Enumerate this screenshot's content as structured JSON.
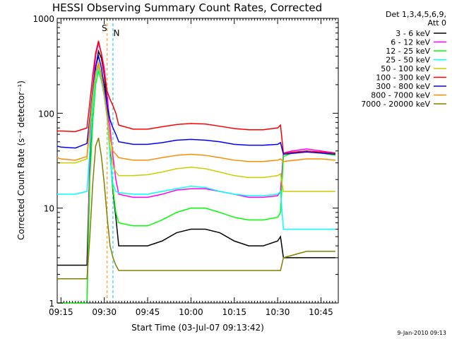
{
  "chart_data": {
    "type": "line",
    "title": "HESSI Observing Summary Count Rates, Corrected",
    "xlabel": "Start Time (03-Jul-07 09:13:42)",
    "ylabel": "Corrected Count Rate (s⁻¹ detector⁻¹)",
    "xlim": [
      "09:13:42",
      "10:51:00"
    ],
    "ylim": [
      1,
      1000
    ],
    "y_scale": "log",
    "x_ticks": [
      "09:15",
      "09:30",
      "09:45",
      "10:00",
      "10:15",
      "10:30",
      "10:45"
    ],
    "y_ticks": [
      {
        "value": 1,
        "label": "1"
      },
      {
        "value": 10,
        "label": "10"
      },
      {
        "value": 100,
        "label": "100"
      },
      {
        "value": 1000,
        "label": "1000"
      }
    ],
    "detector_header": [
      "Det 1,3,4,5,6,9,",
      "Att 0"
    ],
    "footer_timestamp": "9-Jan-2010 09:13",
    "legend_position": "outside-top-right",
    "markers": {
      "S": {
        "label": "S",
        "time": "09:31"
      },
      "N": {
        "label": "N",
        "time": "09:33"
      }
    },
    "series": [
      {
        "name": "3 - 6 keV",
        "color": "#000000",
        "points": [
          [
            "09:13:42",
            2.5
          ],
          [
            "09:15",
            2.5
          ],
          [
            "09:20",
            2.5
          ],
          [
            "09:24",
            2.5
          ],
          [
            "09:25",
            30
          ],
          [
            "09:26",
            120
          ],
          [
            "09:27",
            300
          ],
          [
            "09:28",
            450
          ],
          [
            "09:29",
            380
          ],
          [
            "09:30",
            250
          ],
          [
            "09:31",
            120
          ],
          [
            "09:32",
            40
          ],
          [
            "09:33",
            15
          ],
          [
            "09:34",
            8
          ],
          [
            "09:35",
            4
          ],
          [
            "09:40",
            4
          ],
          [
            "09:45",
            4
          ],
          [
            "09:50",
            4.5
          ],
          [
            "09:55",
            5.5
          ],
          [
            "10:00",
            6
          ],
          [
            "10:05",
            6
          ],
          [
            "10:10",
            5.5
          ],
          [
            "10:15",
            4.5
          ],
          [
            "10:20",
            4
          ],
          [
            "10:25",
            4
          ],
          [
            "10:30",
            4.5
          ],
          [
            "10:31",
            5
          ],
          [
            "10:32",
            3
          ],
          [
            "10:33",
            3
          ],
          [
            "10:40",
            3
          ],
          [
            "10:45",
            3
          ],
          [
            "10:50",
            3
          ]
        ]
      },
      {
        "name": "6 - 12 keV",
        "color": "#ff00ff",
        "points": [
          [
            "09:13:42",
            1
          ],
          [
            "09:24",
            1
          ],
          [
            "09:25",
            45
          ],
          [
            "09:26",
            170
          ],
          [
            "09:27",
            400
          ],
          [
            "09:28",
            550
          ],
          [
            "09:29",
            430
          ],
          [
            "09:30",
            300
          ],
          [
            "09:31",
            160
          ],
          [
            "09:32",
            70
          ],
          [
            "09:33",
            35
          ],
          [
            "09:34",
            20
          ],
          [
            "09:35",
            14
          ],
          [
            "09:40",
            13
          ],
          [
            "09:45",
            13
          ],
          [
            "09:50",
            14
          ],
          [
            "09:55",
            15.5
          ],
          [
            "10:00",
            16
          ],
          [
            "10:05",
            16
          ],
          [
            "10:10",
            15
          ],
          [
            "10:15",
            14
          ],
          [
            "10:20",
            13
          ],
          [
            "10:25",
            13
          ],
          [
            "10:30",
            13.5
          ],
          [
            "10:31",
            15
          ],
          [
            "10:32",
            38
          ],
          [
            "10:35",
            40
          ],
          [
            "10:40",
            42
          ],
          [
            "10:45",
            40
          ],
          [
            "10:50",
            38
          ]
        ]
      },
      {
        "name": "12 - 25 keV",
        "color": "#00ff00",
        "points": [
          [
            "09:13:42",
            1
          ],
          [
            "09:24",
            1
          ],
          [
            "09:25",
            20
          ],
          [
            "09:26",
            80
          ],
          [
            "09:27",
            200
          ],
          [
            "09:28",
            280
          ],
          [
            "09:29",
            220
          ],
          [
            "09:30",
            150
          ],
          [
            "09:31",
            90
          ],
          [
            "09:32",
            35
          ],
          [
            "09:33",
            16
          ],
          [
            "09:34",
            9
          ],
          [
            "09:35",
            7
          ],
          [
            "09:40",
            6.5
          ],
          [
            "09:45",
            6.5
          ],
          [
            "09:50",
            7.5
          ],
          [
            "09:55",
            9
          ],
          [
            "10:00",
            10
          ],
          [
            "10:05",
            10
          ],
          [
            "10:10",
            9
          ],
          [
            "10:15",
            8
          ],
          [
            "10:20",
            7.5
          ],
          [
            "10:25",
            7.5
          ],
          [
            "10:30",
            8
          ],
          [
            "10:31",
            9
          ],
          [
            "10:32",
            35
          ],
          [
            "10:35",
            38
          ],
          [
            "10:40",
            40
          ],
          [
            "10:45",
            38
          ],
          [
            "10:50",
            36
          ]
        ]
      },
      {
        "name": "25 - 50 keV",
        "color": "#00ffff",
        "points": [
          [
            "09:13:42",
            14
          ],
          [
            "09:15",
            14
          ],
          [
            "09:20",
            14
          ],
          [
            "09:24",
            15
          ],
          [
            "09:25",
            40
          ],
          [
            "09:26",
            120
          ],
          [
            "09:27",
            240
          ],
          [
            "09:28",
            300
          ],
          [
            "09:29",
            230
          ],
          [
            "09:30",
            150
          ],
          [
            "09:31",
            90
          ],
          [
            "09:32",
            35
          ],
          [
            "09:33",
            18
          ],
          [
            "09:34",
            15
          ],
          [
            "09:35",
            14.5
          ],
          [
            "09:40",
            14
          ],
          [
            "09:45",
            14
          ],
          [
            "09:50",
            15
          ],
          [
            "09:55",
            16
          ],
          [
            "10:00",
            17
          ],
          [
            "10:05",
            16.5
          ],
          [
            "10:10",
            15
          ],
          [
            "10:15",
            14
          ],
          [
            "10:20",
            13.5
          ],
          [
            "10:25",
            13.5
          ],
          [
            "10:30",
            14
          ],
          [
            "10:31",
            15
          ],
          [
            "10:32",
            6
          ],
          [
            "10:40",
            6
          ],
          [
            "10:45",
            6
          ],
          [
            "10:50",
            6
          ]
        ]
      },
      {
        "name": "50 - 100 keV",
        "color": "#cccc00",
        "points": [
          [
            "09:13:42",
            30
          ],
          [
            "09:15",
            30
          ],
          [
            "09:20",
            30
          ],
          [
            "09:24",
            33
          ],
          [
            "09:25",
            70
          ],
          [
            "09:26",
            150
          ],
          [
            "09:27",
            260
          ],
          [
            "09:28",
            320
          ],
          [
            "09:29",
            240
          ],
          [
            "09:30",
            160
          ],
          [
            "09:31",
            100
          ],
          [
            "09:32",
            45
          ],
          [
            "09:33",
            28
          ],
          [
            "09:34",
            24
          ],
          [
            "09:35",
            22
          ],
          [
            "09:40",
            22
          ],
          [
            "09:45",
            22.5
          ],
          [
            "09:50",
            24
          ],
          [
            "09:55",
            26
          ],
          [
            "10:00",
            27
          ],
          [
            "10:05",
            26
          ],
          [
            "10:10",
            24
          ],
          [
            "10:15",
            22
          ],
          [
            "10:20",
            21
          ],
          [
            "10:25",
            21
          ],
          [
            "10:30",
            22
          ],
          [
            "10:31",
            23
          ],
          [
            "10:32",
            15
          ],
          [
            "10:40",
            15
          ],
          [
            "10:45",
            15
          ],
          [
            "10:50",
            15
          ]
        ]
      },
      {
        "name": "100 - 300 keV",
        "color": "#ff0000",
        "points": [
          [
            "09:13:42",
            65
          ],
          [
            "09:15",
            65
          ],
          [
            "09:20",
            64
          ],
          [
            "09:24",
            70
          ],
          [
            "09:25",
            130
          ],
          [
            "09:26",
            250
          ],
          [
            "09:27",
            430
          ],
          [
            "09:28",
            580
          ],
          [
            "09:29",
            420
          ],
          [
            "09:30",
            260
          ],
          [
            "09:31",
            170
          ],
          [
            "09:32",
            140
          ],
          [
            "09:33",
            120
          ],
          [
            "09:34",
            100
          ],
          [
            "09:35",
            75
          ],
          [
            "09:40",
            68
          ],
          [
            "09:45",
            68
          ],
          [
            "09:50",
            72
          ],
          [
            "09:55",
            76
          ],
          [
            "10:00",
            78
          ],
          [
            "10:05",
            77
          ],
          [
            "10:10",
            73
          ],
          [
            "10:15",
            69
          ],
          [
            "10:20",
            67
          ],
          [
            "10:25",
            67
          ],
          [
            "10:30",
            70
          ],
          [
            "10:31",
            75
          ],
          [
            "10:32",
            38
          ],
          [
            "10:40",
            40
          ],
          [
            "10:45",
            39
          ],
          [
            "10:50",
            38
          ]
        ]
      },
      {
        "name": "300 - 800 keV",
        "color": "#0000ff",
        "points": [
          [
            "09:13:42",
            45
          ],
          [
            "09:15",
            44
          ],
          [
            "09:20",
            43
          ],
          [
            "09:24",
            48
          ],
          [
            "09:25",
            90
          ],
          [
            "09:26",
            180
          ],
          [
            "09:27",
            310
          ],
          [
            "09:28",
            400
          ],
          [
            "09:29",
            300
          ],
          [
            "09:30",
            190
          ],
          [
            "09:31",
            120
          ],
          [
            "09:32",
            85
          ],
          [
            "09:33",
            70
          ],
          [
            "09:34",
            60
          ],
          [
            "09:35",
            50
          ],
          [
            "09:40",
            47
          ],
          [
            "09:45",
            47
          ],
          [
            "09:50",
            49
          ],
          [
            "09:55",
            52
          ],
          [
            "10:00",
            53
          ],
          [
            "10:05",
            52
          ],
          [
            "10:10",
            50
          ],
          [
            "10:15",
            47
          ],
          [
            "10:20",
            46
          ],
          [
            "10:25",
            46
          ],
          [
            "10:30",
            47
          ],
          [
            "10:31",
            49
          ],
          [
            "10:32",
            37
          ],
          [
            "10:40",
            39
          ],
          [
            "10:45",
            38
          ],
          [
            "10:50",
            37
          ]
        ]
      },
      {
        "name": "800 - 7000 keV",
        "color": "#ff8c00",
        "points": [
          [
            "09:13:42",
            34
          ],
          [
            "09:15",
            33
          ],
          [
            "09:20",
            32
          ],
          [
            "09:24",
            35
          ],
          [
            "09:25",
            80
          ],
          [
            "09:26",
            160
          ],
          [
            "09:27",
            270
          ],
          [
            "09:28",
            340
          ],
          [
            "09:29",
            250
          ],
          [
            "09:30",
            160
          ],
          [
            "09:31",
            95
          ],
          [
            "09:32",
            55
          ],
          [
            "09:33",
            40
          ],
          [
            "09:34",
            37
          ],
          [
            "09:35",
            34
          ],
          [
            "09:40",
            32
          ],
          [
            "09:45",
            32
          ],
          [
            "09:50",
            34
          ],
          [
            "09:55",
            36
          ],
          [
            "10:00",
            37
          ],
          [
            "10:05",
            36
          ],
          [
            "10:10",
            34
          ],
          [
            "10:15",
            32
          ],
          [
            "10:20",
            31
          ],
          [
            "10:25",
            31
          ],
          [
            "10:30",
            32
          ],
          [
            "10:31",
            33
          ],
          [
            "10:32",
            31
          ],
          [
            "10:40",
            33
          ],
          [
            "10:45",
            33
          ],
          [
            "10:50",
            32
          ]
        ]
      },
      {
        "name": "7000 - 20000 keV",
        "color": "#808000",
        "points": [
          [
            "09:13:42",
            1.8
          ],
          [
            "09:15",
            1.8
          ],
          [
            "09:20",
            1.8
          ],
          [
            "09:24",
            1.8
          ],
          [
            "09:25",
            5
          ],
          [
            "09:26",
            18
          ],
          [
            "09:27",
            45
          ],
          [
            "09:28",
            55
          ],
          [
            "09:29",
            35
          ],
          [
            "09:30",
            18
          ],
          [
            "09:31",
            8
          ],
          [
            "09:32",
            4
          ],
          [
            "09:33",
            3
          ],
          [
            "09:34",
            2.5
          ],
          [
            "09:35",
            2.2
          ],
          [
            "09:40",
            2.2
          ],
          [
            "09:45",
            2.2
          ],
          [
            "09:50",
            2.2
          ],
          [
            "09:55",
            2.2
          ],
          [
            "10:00",
            2.2
          ],
          [
            "10:05",
            2.2
          ],
          [
            "10:10",
            2.2
          ],
          [
            "10:15",
            2.2
          ],
          [
            "10:20",
            2.2
          ],
          [
            "10:25",
            2.2
          ],
          [
            "10:30",
            2.2
          ],
          [
            "10:31",
            2.2
          ],
          [
            "10:32",
            3
          ],
          [
            "10:40",
            3.5
          ],
          [
            "10:45",
            3.5
          ],
          [
            "10:50",
            3.5
          ]
        ]
      }
    ]
  }
}
